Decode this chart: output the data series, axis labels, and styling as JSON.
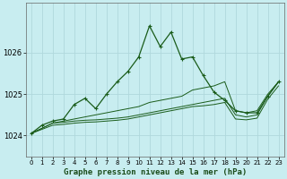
{
  "title": "Graphe pression niveau de la mer (hPa)",
  "background_color": "#c8edf0",
  "grid_color": "#b0d8dc",
  "line_color": "#1a5c1a",
  "xlim": [
    -0.5,
    23.5
  ],
  "ylim": [
    1023.5,
    1027.2
  ],
  "yticks": [
    1024,
    1025,
    1026
  ],
  "xticks": [
    0,
    1,
    2,
    3,
    4,
    5,
    6,
    7,
    8,
    9,
    10,
    11,
    12,
    13,
    14,
    15,
    16,
    17,
    18,
    19,
    20,
    21,
    22,
    23
  ],
  "curve1_x": [
    0,
    1,
    2,
    3,
    4,
    5,
    6,
    7,
    8,
    9,
    10,
    11,
    12,
    13,
    14,
    15,
    16,
    17,
    18,
    19,
    20,
    21,
    22,
    23
  ],
  "curve1_y": [
    1024.05,
    1024.25,
    1024.35,
    1024.4,
    1024.75,
    1024.9,
    1024.65,
    1025.0,
    1025.3,
    1025.55,
    1025.9,
    1026.65,
    1026.15,
    1026.5,
    1025.85,
    1025.9,
    1025.45,
    1025.05,
    1024.85,
    1024.6,
    1024.55,
    1024.55,
    1024.95,
    1025.3
  ],
  "curve2_x": [
    0,
    2,
    3,
    4,
    5,
    6,
    7,
    8,
    9,
    10,
    11,
    12,
    13,
    14,
    15,
    16,
    17,
    18,
    19,
    20,
    21,
    22,
    23
  ],
  "curve2_y": [
    1024.05,
    1024.3,
    1024.35,
    1024.4,
    1024.45,
    1024.5,
    1024.55,
    1024.6,
    1024.65,
    1024.7,
    1024.8,
    1024.85,
    1024.9,
    1024.95,
    1025.1,
    1025.15,
    1025.2,
    1025.3,
    1024.6,
    1024.55,
    1024.6,
    1025.0,
    1025.3
  ],
  "curve3_x": [
    0,
    2,
    3,
    4,
    5,
    6,
    7,
    8,
    9,
    10,
    11,
    12,
    13,
    14,
    15,
    16,
    17,
    18,
    19,
    20,
    21,
    22,
    23
  ],
  "curve3_y": [
    1024.05,
    1024.3,
    1024.32,
    1024.35,
    1024.37,
    1024.38,
    1024.4,
    1024.42,
    1024.45,
    1024.5,
    1024.55,
    1024.6,
    1024.65,
    1024.7,
    1024.75,
    1024.8,
    1024.85,
    1024.9,
    1024.5,
    1024.45,
    1024.5,
    1024.95,
    1025.3
  ],
  "curve4_x": [
    0,
    2,
    3,
    4,
    5,
    6,
    7,
    8,
    9,
    10,
    11,
    12,
    13,
    14,
    15,
    16,
    17,
    18,
    19,
    20,
    21,
    22,
    23
  ],
  "curve4_y": [
    1024.05,
    1024.25,
    1024.27,
    1024.3,
    1024.32,
    1024.33,
    1024.35,
    1024.37,
    1024.4,
    1024.45,
    1024.5,
    1024.55,
    1024.6,
    1024.65,
    1024.7,
    1024.72,
    1024.75,
    1024.8,
    1024.4,
    1024.38,
    1024.42,
    1024.88,
    1025.2
  ]
}
